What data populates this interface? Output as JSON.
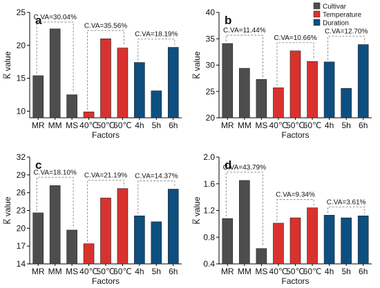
{
  "legend": {
    "placement": "top-right",
    "items": [
      {
        "name": "Cultivar",
        "color": "#4d4d4d"
      },
      {
        "name": "Temperature",
        "color": "#d9322e"
      },
      {
        "name": "Duration",
        "color": "#0d4f80"
      }
    ]
  },
  "chart_data": [
    {
      "type": "bar",
      "panel_label": "a",
      "ylabel": "K̅ value",
      "xlabel": "Factors",
      "categories": [
        "MR",
        "MM",
        "MS",
        "40℃",
        "50℃",
        "60℃",
        "4h",
        "5h",
        "6h"
      ],
      "groups": [
        0,
        0,
        0,
        1,
        1,
        1,
        2,
        2,
        2
      ],
      "values": [
        15.4,
        22.5,
        12.5,
        9.9,
        21.0,
        19.6,
        17.4,
        13.1,
        19.7
      ],
      "ylim": [
        9,
        25
      ],
      "yticks": [
        10,
        15,
        20,
        25
      ],
      "cv_labels": [
        "C.VA=30.04%",
        "C.VA=35.56%",
        "C.VA=18.19%"
      ]
    },
    {
      "type": "bar",
      "panel_label": "b",
      "ylabel": "K̅ value",
      "xlabel": "Factors",
      "categories": [
        "MR",
        "MM",
        "MS",
        "40℃",
        "50℃",
        "60℃",
        "4h",
        "5h",
        "6h"
      ],
      "groups": [
        0,
        0,
        0,
        1,
        1,
        1,
        2,
        2,
        2
      ],
      "values": [
        34.1,
        29.4,
        27.3,
        25.7,
        32.7,
        30.7,
        30.6,
        25.6,
        33.9
      ],
      "ylim": [
        20,
        40
      ],
      "yticks": [
        20,
        25,
        30,
        35,
        40
      ],
      "cv_labels": [
        "C.VA=11.44%",
        "C.VA=10.66%",
        "C.VA=12.70%"
      ]
    },
    {
      "type": "bar",
      "panel_label": "c",
      "ylabel": "K̅ value",
      "xlabel": "Factors",
      "categories": [
        "MR",
        "MM",
        "MS",
        "40℃",
        "50℃",
        "60℃",
        "4h",
        "5h",
        "6h"
      ],
      "groups": [
        0,
        0,
        0,
        1,
        1,
        1,
        2,
        2,
        2
      ],
      "values": [
        22.6,
        27.2,
        19.7,
        17.4,
        25.1,
        26.7,
        22.1,
        21.1,
        26.6
      ],
      "ylim": [
        14,
        32
      ],
      "yticks": [
        14,
        17,
        20,
        23,
        26,
        29,
        32
      ],
      "cv_labels": [
        "C.VA=18.10%",
        "C.VA=21.19%",
        "C.VA=14.37%"
      ]
    },
    {
      "type": "bar",
      "panel_label": "d",
      "ylabel": "K̅ value",
      "xlabel": "Factors",
      "categories": [
        "MR",
        "MM",
        "MS",
        "40℃",
        "50℃",
        "60℃",
        "4h",
        "5h",
        "6h"
      ],
      "groups": [
        0,
        0,
        0,
        1,
        1,
        1,
        2,
        2,
        2
      ],
      "values": [
        1.08,
        1.65,
        0.63,
        1.01,
        1.09,
        1.24,
        1.13,
        1.09,
        1.12
      ],
      "ylim": [
        0.4,
        2.0
      ],
      "yticks": [
        0.4,
        0.8,
        1.2,
        1.6,
        2.0
      ],
      "cv_labels": [
        "C.VA=43.79%",
        "C.VA=9.34%",
        "C.VA=3.61%"
      ]
    }
  ]
}
